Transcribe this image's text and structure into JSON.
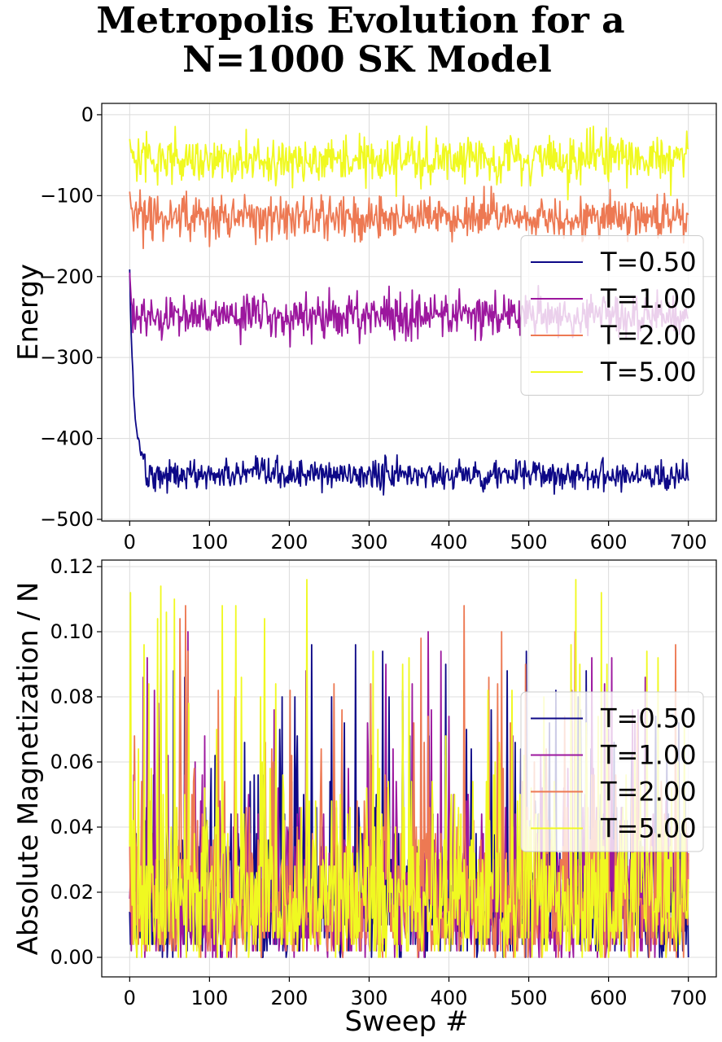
{
  "figure": {
    "title_lines": [
      "Metropolis Evolution for a",
      "N=1000 SK Model"
    ]
  },
  "chart_data": [
    {
      "type": "line",
      "xlabel": "",
      "ylabel": "Energy",
      "xlim": [
        -35,
        735
      ],
      "ylim": [
        -502,
        14
      ],
      "xticks": [
        0,
        100,
        200,
        300,
        400,
        500,
        600,
        700
      ],
      "yticks": [
        0,
        -100,
        -200,
        -300,
        -400,
        -500
      ],
      "xtick_labels": [
        "0",
        "100",
        "200",
        "300",
        "400",
        "500",
        "600",
        "700"
      ],
      "ytick_labels": [
        "0",
        "−100",
        "−200",
        "−300",
        "−400",
        "−500"
      ],
      "grid": true,
      "legend": "center-right",
      "series": [
        {
          "name": "T=0.50",
          "color": "#0d0887",
          "start": -195,
          "mean": -445,
          "noise": 9,
          "x_end": 700
        },
        {
          "name": "T=1.00",
          "color": "#9c179e",
          "start": -195,
          "mean": -248,
          "noise": 13,
          "x_end": 700
        },
        {
          "name": "T=2.00",
          "color": "#ed7953",
          "start": -95,
          "mean": -127,
          "noise": 14,
          "x_end": 700
        },
        {
          "name": "T=5.00",
          "color": "#f0f921",
          "start": -30,
          "mean": -55,
          "noise": 15,
          "x_end": 700
        }
      ]
    },
    {
      "type": "line",
      "xlabel": "Sweep #",
      "ylabel": "Absolute Magnetization / N",
      "xlim": [
        -35,
        735
      ],
      "ylim": [
        -0.006,
        0.122
      ],
      "xticks": [
        0,
        100,
        200,
        300,
        400,
        500,
        600,
        700
      ],
      "yticks": [
        0.0,
        0.02,
        0.04,
        0.06,
        0.08,
        0.1,
        0.12
      ],
      "xtick_labels": [
        "0",
        "100",
        "200",
        "300",
        "400",
        "500",
        "600",
        "700"
      ],
      "ytick_labels": [
        "0.00",
        "0.02",
        "0.04",
        "0.06",
        "0.08",
        "0.10",
        "0.12"
      ],
      "grid": true,
      "legend": "center-right",
      "series": [
        {
          "name": "T=0.50",
          "color": "#0d0887",
          "max": 0.098,
          "x_end": 700
        },
        {
          "name": "T=1.00",
          "color": "#9c179e",
          "max": 0.104,
          "x_end": 700
        },
        {
          "name": "T=2.00",
          "color": "#ed7953",
          "max": 0.11,
          "x_end": 700
        },
        {
          "name": "T=5.00",
          "color": "#f0f921",
          "max": 0.116,
          "x_end": 700
        }
      ]
    }
  ]
}
